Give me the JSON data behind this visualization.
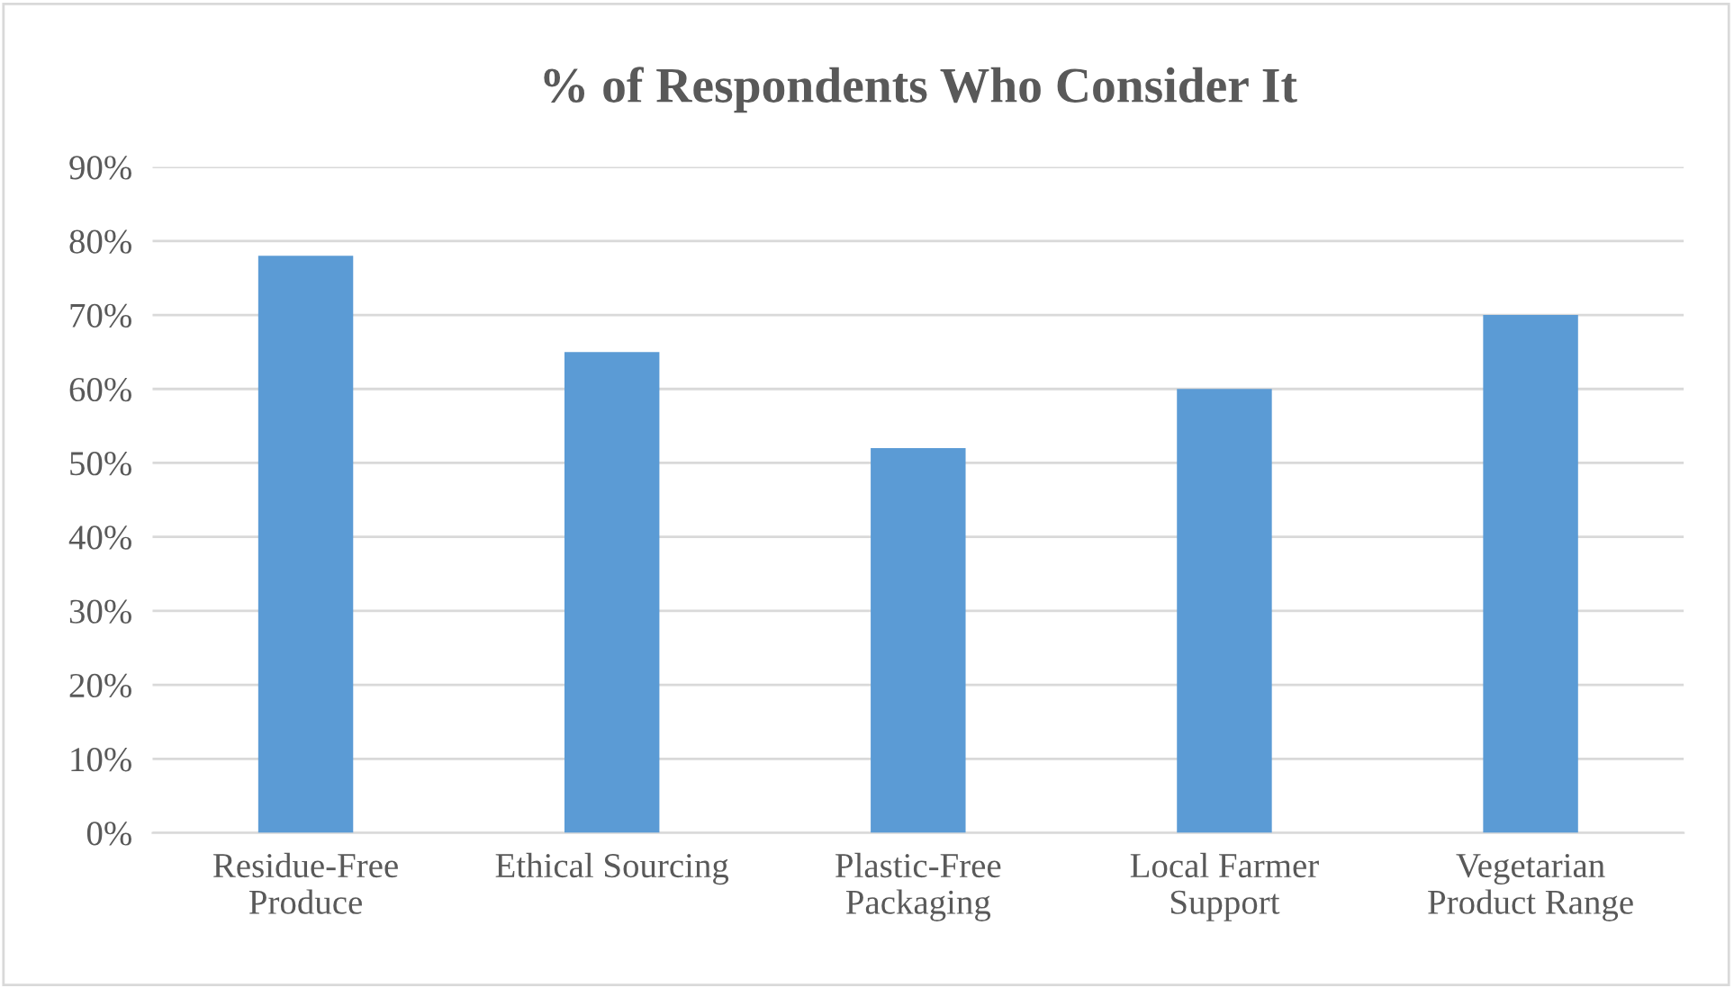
{
  "chart_data": {
    "type": "bar",
    "title": "% of Respondents Who Consider It",
    "categories": [
      "Residue-Free\nProduce",
      "Ethical Sourcing",
      "Plastic-Free\nPackaging",
      "Local Farmer\nSupport",
      "Vegetarian\nProduct Range"
    ],
    "values": [
      78,
      65,
      52,
      60,
      70
    ],
    "color": "#5b9bd5",
    "ylim": [
      0,
      90
    ],
    "yticks": [
      {
        "value": 0,
        "label": "0%"
      },
      {
        "value": 10,
        "label": "10%"
      },
      {
        "value": 20,
        "label": "20%"
      },
      {
        "value": 30,
        "label": "30%"
      },
      {
        "value": 40,
        "label": "40%"
      },
      {
        "value": 50,
        "label": "50%"
      },
      {
        "value": 60,
        "label": "60%"
      },
      {
        "value": 70,
        "label": "70%"
      },
      {
        "value": 80,
        "label": "80%"
      },
      {
        "value": 90,
        "label": "90%"
      }
    ],
    "grid": "y"
  }
}
